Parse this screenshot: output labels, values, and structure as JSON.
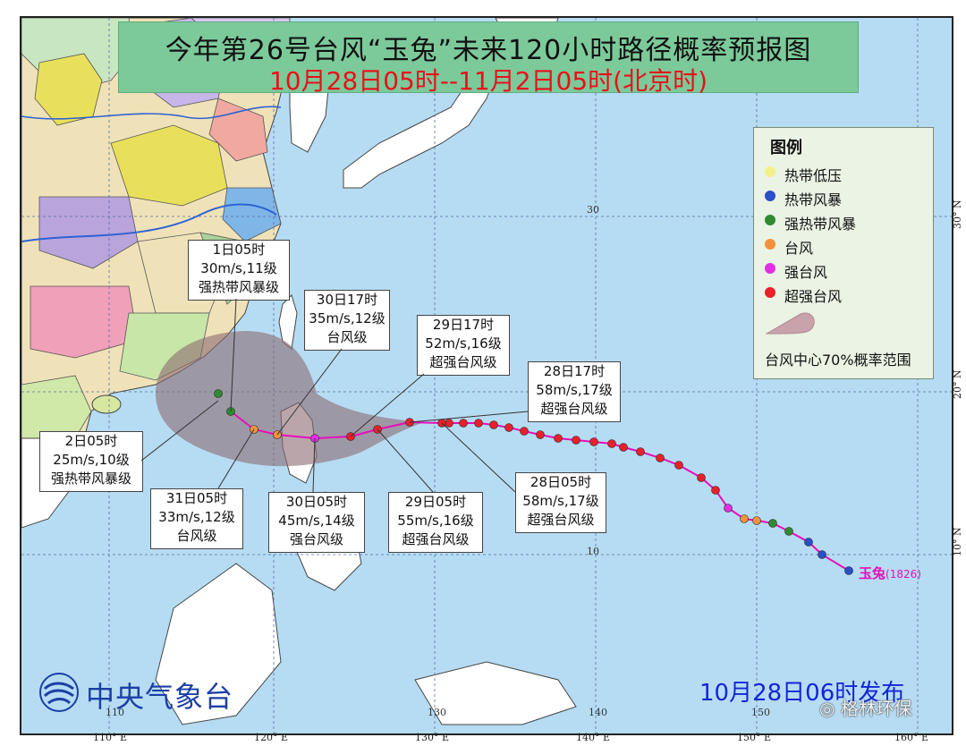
{
  "title": {
    "main": "今年第26号台风“玉兔”未来120小时路径概率预报图",
    "period": "10月28日05时--11月2日05时(北京时)"
  },
  "legend": {
    "title": "图例",
    "items": [
      {
        "label": "热带低压",
        "color": "#f2f08a"
      },
      {
        "label": "热带风暴",
        "color": "#2a4fc9"
      },
      {
        "label": "强热带风暴",
        "color": "#2f8b2f"
      },
      {
        "label": "台风",
        "color": "#f2923a"
      },
      {
        "label": "强台风",
        "color": "#e02fe0"
      },
      {
        "label": "超强台风",
        "color": "#e8202a"
      }
    ],
    "probability_label": "台风中心70%概率范围"
  },
  "callouts": [
    {
      "id": "nov1-05",
      "line1": "1日05时",
      "line2": "30m/s,11级",
      "line3": "强热带风暴级"
    },
    {
      "id": "oct30-17",
      "line1": "30日17时",
      "line2": "35m/s,12级",
      "line3": "台风级"
    },
    {
      "id": "oct29-17",
      "line1": "29日17时",
      "line2": "52m/s,16级",
      "line3": "超强台风级"
    },
    {
      "id": "oct28-17",
      "line1": "28日17时",
      "line2": "58m/s,17级",
      "line3": "超强台风级"
    },
    {
      "id": "nov2-05",
      "line1": "2日05时",
      "line2": "25m/s,10级",
      "line3": "强热带风暴级"
    },
    {
      "id": "oct31-05",
      "line1": "31日05时",
      "line2": "33m/s,12级",
      "line3": "台风级"
    },
    {
      "id": "oct30-05",
      "line1": "30日05时",
      "line2": "45m/s,14级",
      "line3": "强台风级"
    },
    {
      "id": "oct29-05",
      "line1": "29日05时",
      "line2": "55m/s,16级",
      "line3": "超强台风级"
    },
    {
      "id": "oct28-05",
      "line1": "28日05时",
      "line2": "58m/s,17级",
      "line3": "超强台风级"
    }
  ],
  "storm": {
    "name": "玉兔",
    "code": "(1826)",
    "track_color": "#e60fb9"
  },
  "axes": {
    "lon_labels": [
      "110° E",
      "120° E",
      "130° E",
      "140° E",
      "150° E",
      "160° E"
    ],
    "lat_labels": [
      "10° N",
      "20° N",
      "30° N"
    ],
    "grid_lat_labels": [
      "30",
      "10"
    ],
    "grid_lon_labels": [
      "110",
      "130",
      "140",
      "150"
    ]
  },
  "footer": {
    "agency": "中央气象台",
    "issued": "10月28日06时发布",
    "watermark": "格林环保"
  }
}
